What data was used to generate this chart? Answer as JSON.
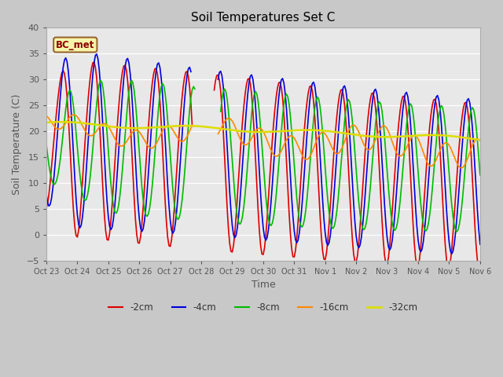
{
  "title": "Soil Temperatures Set C",
  "xlabel": "Time",
  "ylabel": "Soil Temperature (C)",
  "ylim": [
    -5,
    40
  ],
  "annotation": "BC_met",
  "fig_bg": "#c8c8c8",
  "plot_bg": "#e8e8e8",
  "series_colors": {
    "-2cm": "#dd0000",
    "-4cm": "#0000dd",
    "-8cm": "#00bb00",
    "-16cm": "#ff8800",
    "-32cm": "#dddd00"
  },
  "xtick_labels": [
    "Oct 23",
    "Oct 24",
    "Oct 25",
    "Oct 26",
    "Oct 27",
    "Oct 28",
    "Oct 29",
    "Oct 30",
    "Oct 31",
    "Nov 1",
    "Nov 2",
    "Nov 3",
    "Nov 4",
    "Nov 5",
    "Nov 6"
  ],
  "ytick_vals": [
    -5,
    0,
    5,
    10,
    15,
    20,
    25,
    30,
    35,
    40
  ]
}
